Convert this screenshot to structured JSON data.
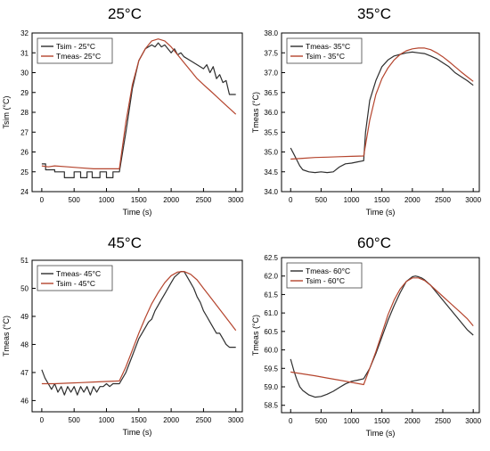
{
  "colors": {
    "dark": "#2e2e2e",
    "red": "#b5452e",
    "axis": "#000000",
    "bg": "#ffffff"
  },
  "chart_data": [
    {
      "id": "p25",
      "type": "line",
      "title": "25°C",
      "xlabel": "Time (s)",
      "ylabel": "Tsim (°C)",
      "xlim": [
        -150,
        3100
      ],
      "ylim": [
        24,
        32
      ],
      "xticks": [
        0,
        500,
        1000,
        1500,
        2000,
        2500,
        3000
      ],
      "yticks": [
        24,
        25,
        26,
        27,
        28,
        29,
        30,
        31,
        32
      ],
      "legend": "top-left",
      "series": [
        {
          "name": "Tsim - 25°C",
          "color": "#2e2e2e",
          "x": [
            0,
            60,
            60,
            200,
            200,
            350,
            350,
            500,
            500,
            600,
            600,
            700,
            700,
            780,
            780,
            900,
            900,
            1000,
            1000,
            1100,
            1100,
            1200,
            1300,
            1400,
            1500,
            1600,
            1700,
            1750,
            1800,
            1850,
            1900,
            1950,
            2000,
            2050,
            2100,
            2150,
            2200,
            2300,
            2400,
            2500,
            2550,
            2600,
            2650,
            2700,
            2750,
            2800,
            2850,
            2900,
            2950,
            3000
          ],
          "y": [
            25.4,
            25.4,
            25.1,
            25.1,
            25.0,
            25.0,
            24.7,
            24.7,
            25.0,
            25.0,
            24.7,
            24.7,
            25.0,
            25.0,
            24.7,
            24.7,
            25.0,
            25.0,
            24.7,
            24.7,
            25.0,
            25.0,
            27.0,
            29.2,
            30.6,
            31.2,
            31.4,
            31.3,
            31.5,
            31.3,
            31.4,
            31.2,
            31.0,
            31.2,
            30.9,
            31.0,
            30.8,
            30.6,
            30.4,
            30.2,
            30.4,
            30.0,
            30.3,
            29.7,
            29.9,
            29.5,
            29.6,
            28.9,
            28.9,
            28.9
          ]
        },
        {
          "name": "Tmeas- 25°C",
          "color": "#b5452e",
          "x": [
            0,
            100,
            200,
            400,
            600,
            800,
            1000,
            1200,
            1300,
            1400,
            1500,
            1600,
            1700,
            1800,
            1900,
            2000,
            2100,
            2200,
            2300,
            2400,
            2500,
            2600,
            2700,
            2800,
            2900,
            3000
          ],
          "y": [
            25.3,
            25.25,
            25.3,
            25.25,
            25.2,
            25.15,
            25.15,
            25.15,
            27.5,
            29.4,
            30.6,
            31.2,
            31.6,
            31.7,
            31.6,
            31.3,
            30.9,
            30.5,
            30.1,
            29.7,
            29.4,
            29.1,
            28.8,
            28.5,
            28.2,
            27.9
          ]
        }
      ]
    },
    {
      "id": "p35",
      "type": "line",
      "title": "35°C",
      "xlabel": "Time (s)",
      "ylabel": "Tmeas (°C)",
      "xlim": [
        -150,
        3100
      ],
      "ylim": [
        34.0,
        38.0
      ],
      "xticks": [
        0,
        500,
        1000,
        1500,
        2000,
        2500,
        3000
      ],
      "yticks": [
        34.0,
        34.5,
        35.0,
        35.5,
        36.0,
        36.5,
        37.0,
        37.5,
        38.0
      ],
      "legend": "top-left",
      "series": [
        {
          "name": "Tmeas- 35°C",
          "color": "#2e2e2e",
          "x": [
            0,
            50,
            100,
            150,
            200,
            300,
            400,
            500,
            600,
            700,
            800,
            900,
            1000,
            1100,
            1200,
            1230,
            1300,
            1400,
            1500,
            1600,
            1700,
            1800,
            1900,
            2000,
            2100,
            2200,
            2300,
            2400,
            2500,
            2600,
            2700,
            2800,
            2900,
            3000
          ],
          "y": [
            35.1,
            34.95,
            34.8,
            34.65,
            34.55,
            34.5,
            34.48,
            34.5,
            34.48,
            34.5,
            34.62,
            34.7,
            34.72,
            34.75,
            34.78,
            35.5,
            36.3,
            36.8,
            37.15,
            37.32,
            37.42,
            37.46,
            37.5,
            37.52,
            37.5,
            37.48,
            37.42,
            37.35,
            37.25,
            37.15,
            37.0,
            36.9,
            36.8,
            36.68
          ]
        },
        {
          "name": "Tsim - 35°C",
          "color": "#b5452e",
          "x": [
            0,
            200,
            400,
            600,
            800,
            1000,
            1200,
            1300,
            1400,
            1500,
            1600,
            1700,
            1800,
            1900,
            2000,
            2100,
            2200,
            2300,
            2400,
            2500,
            2600,
            2700,
            2800,
            2900,
            3000
          ],
          "y": [
            34.82,
            34.84,
            34.86,
            34.87,
            34.88,
            34.89,
            34.9,
            35.8,
            36.45,
            36.85,
            37.12,
            37.32,
            37.46,
            37.55,
            37.6,
            37.62,
            37.62,
            37.58,
            37.5,
            37.4,
            37.28,
            37.15,
            37.02,
            36.9,
            36.78
          ]
        }
      ]
    },
    {
      "id": "p45",
      "type": "line",
      "title": "45°C",
      "xlabel": "Time (s)",
      "ylabel": "Tmeas (°C)",
      "xlim": [
        -150,
        3100
      ],
      "ylim": [
        45.6,
        51
      ],
      "xticks": [
        0,
        500,
        1000,
        1500,
        2000,
        2500,
        3000
      ],
      "yticks": [
        46,
        47,
        48,
        49,
        50,
        51
      ],
      "legend": "top-left",
      "series": [
        {
          "name": "Tmeas- 45°C",
          "color": "#2e2e2e",
          "x": [
            0,
            50,
            100,
            150,
            200,
            250,
            300,
            350,
            400,
            450,
            500,
            550,
            600,
            650,
            700,
            750,
            800,
            850,
            900,
            950,
            1000,
            1050,
            1100,
            1150,
            1200,
            1300,
            1400,
            1500,
            1550,
            1600,
            1650,
            1700,
            1750,
            1800,
            1850,
            1900,
            1950,
            2000,
            2050,
            2100,
            2150,
            2200,
            2250,
            2300,
            2350,
            2400,
            2450,
            2500,
            2550,
            2600,
            2650,
            2700,
            2750,
            2800,
            2850,
            2900,
            2950,
            3000
          ],
          "y": [
            47.1,
            46.8,
            46.6,
            46.4,
            46.6,
            46.3,
            46.5,
            46.2,
            46.5,
            46.3,
            46.5,
            46.2,
            46.5,
            46.3,
            46.5,
            46.2,
            46.5,
            46.3,
            46.5,
            46.5,
            46.6,
            46.5,
            46.6,
            46.6,
            46.6,
            47.0,
            47.6,
            48.2,
            48.4,
            48.6,
            48.8,
            48.9,
            49.2,
            49.4,
            49.6,
            49.8,
            50.0,
            50.2,
            50.4,
            50.5,
            50.6,
            50.6,
            50.4,
            50.2,
            50.0,
            49.7,
            49.5,
            49.2,
            49.0,
            48.8,
            48.6,
            48.4,
            48.4,
            48.2,
            48.0,
            47.9,
            47.9,
            47.9
          ]
        },
        {
          "name": "Tsim - 45°C",
          "color": "#b5452e",
          "x": [
            0,
            200,
            400,
            600,
            800,
            1000,
            1200,
            1300,
            1400,
            1500,
            1600,
            1700,
            1800,
            1900,
            2000,
            2100,
            2200,
            2300,
            2400,
            2500,
            2600,
            2700,
            2800,
            2900,
            3000
          ],
          "y": [
            46.6,
            46.6,
            46.62,
            46.64,
            46.66,
            46.68,
            46.7,
            47.2,
            47.8,
            48.4,
            48.95,
            49.45,
            49.85,
            50.2,
            50.45,
            50.58,
            50.6,
            50.5,
            50.3,
            50.0,
            49.7,
            49.4,
            49.1,
            48.8,
            48.5
          ]
        }
      ]
    },
    {
      "id": "p60",
      "type": "line",
      "title": "60°C",
      "xlabel": "Time (s)",
      "ylabel": "Tmeas (°C)",
      "xlim": [
        -150,
        3100
      ],
      "ylim": [
        58.3,
        62.5
      ],
      "xticks": [
        0,
        500,
        1000,
        1500,
        2000,
        2500,
        3000
      ],
      "yticks": [
        58.5,
        59.0,
        59.5,
        60.0,
        60.5,
        61.0,
        61.5,
        62.0,
        62.5
      ],
      "legend": "top-left",
      "series": [
        {
          "name": "Tmeas- 60°C",
          "color": "#2e2e2e",
          "x": [
            0,
            50,
            100,
            150,
            200,
            300,
            400,
            500,
            600,
            700,
            800,
            900,
            1000,
            1100,
            1200,
            1300,
            1400,
            1500,
            1600,
            1700,
            1800,
            1900,
            2000,
            2050,
            2100,
            2150,
            2200,
            2300,
            2400,
            2500,
            2600,
            2700,
            2800,
            2900,
            3000
          ],
          "y": [
            59.75,
            59.45,
            59.2,
            59.0,
            58.9,
            58.78,
            58.72,
            58.74,
            58.8,
            58.88,
            58.98,
            59.08,
            59.15,
            59.18,
            59.22,
            59.5,
            59.9,
            60.35,
            60.8,
            61.2,
            61.55,
            61.85,
            61.98,
            62.0,
            61.98,
            61.95,
            61.9,
            61.75,
            61.55,
            61.35,
            61.15,
            60.95,
            60.75,
            60.55,
            60.4
          ]
        },
        {
          "name": "Tsim - 60°C",
          "color": "#b5452e",
          "x": [
            0,
            200,
            400,
            600,
            800,
            1000,
            1200,
            1300,
            1400,
            1500,
            1600,
            1700,
            1800,
            1900,
            2000,
            2100,
            2200,
            2300,
            2400,
            2500,
            2600,
            2700,
            2800,
            2900,
            3000
          ],
          "y": [
            59.4,
            59.35,
            59.3,
            59.24,
            59.18,
            59.12,
            59.06,
            59.5,
            59.95,
            60.45,
            60.95,
            61.35,
            61.65,
            61.85,
            61.95,
            61.95,
            61.88,
            61.75,
            61.6,
            61.45,
            61.3,
            61.15,
            61.0,
            60.85,
            60.65
          ]
        }
      ]
    }
  ]
}
